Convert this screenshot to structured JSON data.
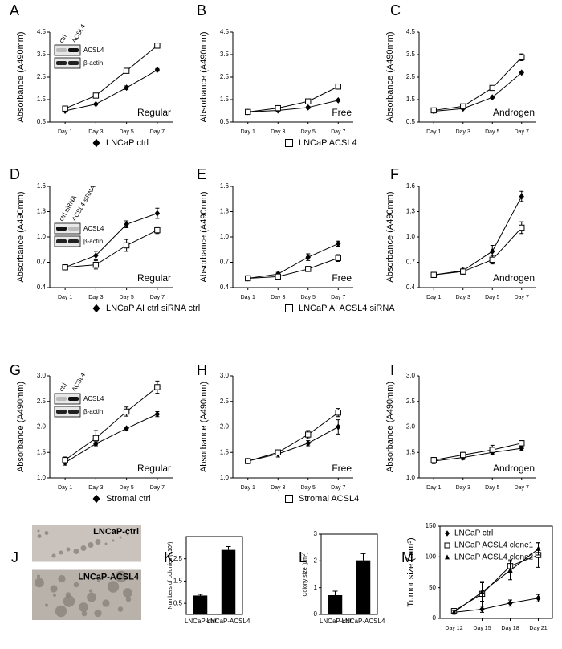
{
  "chart_data": [
    {
      "panel": "A",
      "type": "line",
      "categories": [
        "Day 1",
        "Day 3",
        "Day 5",
        "Day 7"
      ],
      "ylim": [
        0.5,
        4.5
      ],
      "yticks": [
        0.5,
        1.5,
        2.5,
        3.5,
        4.5
      ],
      "ylabel": "Absorbance (A490mm)",
      "annotation": "Regular",
      "inset": {
        "lanes": [
          "ctrl",
          "ACSL4"
        ],
        "bands": [
          "ACSL4",
          "β-actin"
        ]
      },
      "series": [
        {
          "marker": "diamond",
          "color": "#000000",
          "values": [
            1.0,
            1.3,
            2.03,
            2.82
          ],
          "errors": [
            0.05,
            0.04,
            0.08,
            0.06
          ]
        },
        {
          "marker": "square",
          "color": "#000000",
          "values": [
            1.1,
            1.68,
            2.78,
            3.9
          ],
          "errors": [
            0.06,
            0.07,
            0.05,
            0.06
          ]
        }
      ]
    },
    {
      "panel": "B",
      "type": "line",
      "categories": [
        "Day 1",
        "Day 3",
        "Day 5",
        "Day 7"
      ],
      "ylim": [
        0.5,
        4.5
      ],
      "yticks": [
        0.5,
        1.5,
        2.5,
        3.5,
        4.5
      ],
      "ylabel": "Absorbance (A490mm)",
      "annotation": "Free",
      "legend": "below",
      "series": [
        {
          "name": "LNCaP ctrl",
          "marker": "diamond",
          "color": "#000000",
          "values": [
            0.95,
            1.02,
            1.15,
            1.47
          ],
          "errors": [
            0.03,
            0.04,
            0.05,
            0.04
          ]
        },
        {
          "name": "LNCaP ACSL4",
          "marker": "square",
          "color": "#000000",
          "values": [
            0.95,
            1.12,
            1.42,
            2.08
          ],
          "errors": [
            0.04,
            0.08,
            0.1,
            0.1
          ]
        }
      ]
    },
    {
      "panel": "C",
      "type": "line",
      "categories": [
        "Day 1",
        "Day 3",
        "Day 5",
        "Day 7"
      ],
      "ylim": [
        0.5,
        4.5
      ],
      "yticks": [
        0.5,
        1.5,
        2.5,
        3.5,
        4.5
      ],
      "ylabel": "Absorbance (A490mm)",
      "annotation": "Androgen",
      "series": [
        {
          "marker": "diamond",
          "color": "#000000",
          "values": [
            0.98,
            1.1,
            1.6,
            2.7
          ],
          "errors": [
            0.03,
            0.03,
            0.04,
            0.05
          ]
        },
        {
          "marker": "square",
          "color": "#000000",
          "values": [
            1.02,
            1.2,
            2.02,
            3.38
          ],
          "errors": [
            0.05,
            0.06,
            0.06,
            0.15
          ]
        }
      ]
    },
    {
      "panel": "D",
      "type": "line",
      "categories": [
        "Day 1",
        "Day 3",
        "Day 5",
        "Day 7"
      ],
      "ylim": [
        0.4,
        1.6
      ],
      "yticks": [
        0.4,
        0.7,
        {
          "value": 1,
          "label": "1.0"
        },
        1.3,
        1.6
      ],
      "ylabel": "Absorbance (A490mm)",
      "annotation": "Regular",
      "inset": {
        "lanes": [
          "ctrl siRNA",
          "ACSL4 siRNA"
        ],
        "bands": [
          "ACSL4",
          "β-actin"
        ]
      },
      "series": [
        {
          "marker": "diamond",
          "color": "#000000",
          "values": [
            0.64,
            0.78,
            1.15,
            1.28
          ],
          "errors": [
            0.03,
            0.05,
            0.04,
            0.06
          ]
        },
        {
          "marker": "square",
          "color": "#000000",
          "values": [
            0.64,
            0.67,
            0.9,
            1.08
          ],
          "errors": [
            0.03,
            0.05,
            0.07,
            0.04
          ]
        }
      ]
    },
    {
      "panel": "E",
      "type": "line",
      "categories": [
        "Day 1",
        "Day 3",
        "Day 5",
        "Day 7"
      ],
      "ylim": [
        0.4,
        1.6
      ],
      "yticks": [
        0.4,
        0.7,
        {
          "value": 1,
          "label": "1.0"
        },
        1.3,
        1.6
      ],
      "ylabel": "Absorbance (A490mm)",
      "annotation": "Free",
      "legend": "below",
      "series": [
        {
          "name": "LNCaP AI ctrl siRNA ctrl",
          "marker": "diamond",
          "color": "#000000",
          "values": [
            0.51,
            0.56,
            0.76,
            0.92
          ],
          "errors": [
            0.01,
            0.02,
            0.04,
            0.03
          ]
        },
        {
          "name": "LNCaP  AI ACSL4 siRNA",
          "marker": "square",
          "color": "#000000",
          "values": [
            0.51,
            0.53,
            0.62,
            0.75
          ],
          "errors": [
            0.01,
            0.02,
            0.03,
            0.04
          ]
        }
      ]
    },
    {
      "panel": "F",
      "type": "line",
      "categories": [
        "Day 1",
        "Day 3",
        "Day 5",
        "Day 7"
      ],
      "ylim": [
        0.4,
        1.6
      ],
      "yticks": [
        0.4,
        0.7,
        {
          "value": 1,
          "label": "1.0"
        },
        1.3,
        1.6
      ],
      "ylabel": "Absorbance (A490mm)",
      "annotation": "Androgen",
      "series": [
        {
          "marker": "diamond",
          "color": "#000000",
          "values": [
            0.55,
            0.6,
            0.83,
            1.48
          ],
          "errors": [
            0.03,
            0.04,
            0.07,
            0.06
          ]
        },
        {
          "marker": "square",
          "color": "#000000",
          "values": [
            0.55,
            0.59,
            0.73,
            1.11
          ],
          "errors": [
            0.03,
            0.03,
            0.05,
            0.07
          ]
        }
      ]
    },
    {
      "panel": "G",
      "type": "line",
      "categories": [
        "Day 1",
        "Day 3",
        "Day 5",
        "Day 7"
      ],
      "ylim": [
        1,
        3
      ],
      "yticks": [
        {
          "value": 1,
          "label": "1.0"
        },
        1.5,
        {
          "value": 2,
          "label": "2.0"
        },
        2.5,
        {
          "value": 3,
          "label": "3.0"
        }
      ],
      "ylabel": "Absorbance (A490mm)",
      "annotation": "Regular",
      "inset": {
        "lanes": [
          "ctrl",
          "ACSL4"
        ],
        "bands": [
          "ACSL4",
          "β-actin"
        ]
      },
      "series": [
        {
          "marker": "diamond",
          "color": "#000000",
          "values": [
            1.3,
            1.67,
            1.97,
            2.25
          ],
          "errors": [
            0.05,
            0.04,
            0.03,
            0.05
          ]
        },
        {
          "marker": "square",
          "color": "#000000",
          "values": [
            1.35,
            1.78,
            2.3,
            2.78
          ],
          "errors": [
            0.06,
            0.15,
            0.09,
            0.12
          ]
        }
      ]
    },
    {
      "panel": "H",
      "type": "line",
      "categories": [
        "Day 1",
        "Day 3",
        "Day 5",
        "Day 7"
      ],
      "ylim": [
        1,
        3
      ],
      "yticks": [
        {
          "value": 1,
          "label": "1.0"
        },
        1.5,
        {
          "value": 2,
          "label": "2.0"
        },
        2.5,
        {
          "value": 3,
          "label": "3.0"
        }
      ],
      "ylabel": "Absorbance (A490mm)",
      "annotation": "Free",
      "legend": "below",
      "series": [
        {
          "name": "Stromal ctrl",
          "marker": "diamond",
          "color": "#000000",
          "values": [
            1.33,
            1.47,
            1.68,
            2.0
          ],
          "errors": [
            0.04,
            0.06,
            0.05,
            0.14
          ]
        },
        {
          "name": "Stromal ACSL4",
          "marker": "square",
          "color": "#000000",
          "values": [
            1.33,
            1.5,
            1.85,
            2.28
          ],
          "errors": [
            0.04,
            0.04,
            0.08,
            0.08
          ]
        }
      ]
    },
    {
      "panel": "I",
      "type": "line",
      "categories": [
        "Day 1",
        "Day 3",
        "Day 5",
        "Day 7"
      ],
      "ylim": [
        1,
        3
      ],
      "yticks": [
        {
          "value": 1,
          "label": "1.0"
        },
        1.5,
        {
          "value": 2,
          "label": "2.0"
        },
        2.5,
        {
          "value": 3,
          "label": "3.0"
        }
      ],
      "ylabel": "Absorbance (A490mm)",
      "annotation": "Androgen",
      "series": [
        {
          "marker": "diamond",
          "color": "#000000",
          "values": [
            1.33,
            1.4,
            1.5,
            1.58
          ],
          "errors": [
            0.05,
            0.04,
            0.05,
            0.04
          ]
        },
        {
          "marker": "square",
          "color": "#000000",
          "values": [
            1.35,
            1.45,
            1.55,
            1.68
          ],
          "errors": [
            0.05,
            0.05,
            0.09,
            0.05
          ]
        }
      ]
    },
    {
      "panel": "J",
      "type": "image",
      "captions": [
        "LNCaP-ctrl",
        "LNCaP-ACSL4"
      ]
    },
    {
      "panel": "K",
      "type": "bar",
      "frame": true,
      "categories": [
        "LNCaP-ctrl",
        "LNCaP-ACSL4"
      ],
      "values": [
        0.85,
        2.9
      ],
      "errors": [
        0.05,
        0.15
      ],
      "color": "#000000",
      "ylim": [
        0,
        3.5
      ],
      "yticks": [
        0.5,
        1.5,
        2.5
      ],
      "ylabel": "Numbers of colonies (x10²)"
    },
    {
      "panel": "L",
      "type": "bar",
      "frame": true,
      "categories": [
        "LNCaP-ctrl",
        "LNCaP-ACSL4"
      ],
      "values": [
        0.72,
        2.02
      ],
      "errors": [
        0.15,
        0.25
      ],
      "color": "#000000",
      "ylim": [
        0,
        3
      ],
      "yticks": [
        0,
        1,
        2,
        3
      ],
      "ylabel": "Colony size (μm²)"
    },
    {
      "panel": "M",
      "type": "line",
      "frame": true,
      "categories": [
        "Day 12",
        "Day 15",
        "Day 18",
        "Day 21"
      ],
      "ylim": [
        0,
        150
      ],
      "yticks": [
        0,
        50,
        100,
        150
      ],
      "ylabel": "Tumor size (mm³)",
      "legend": "upper left",
      "series": [
        {
          "name": "LNCaP ctrl",
          "marker": "diamond",
          "color": "#000000",
          "values": [
            10,
            15,
            25,
            33
          ],
          "errors": [
            3,
            5,
            5,
            6
          ]
        },
        {
          "name": "LNCaP ACSL4 clone1",
          "marker": "square",
          "color": "#000000",
          "values": [
            12,
            40,
            85,
            103
          ],
          "errors": [
            4,
            20,
            10,
            20
          ]
        },
        {
          "name": "LNCaP ACSL4 clone2",
          "marker": "triangle",
          "color": "#000000",
          "values": [
            10,
            43,
            78,
            113
          ],
          "errors": [
            3,
            15,
            15,
            10
          ]
        }
      ]
    }
  ]
}
